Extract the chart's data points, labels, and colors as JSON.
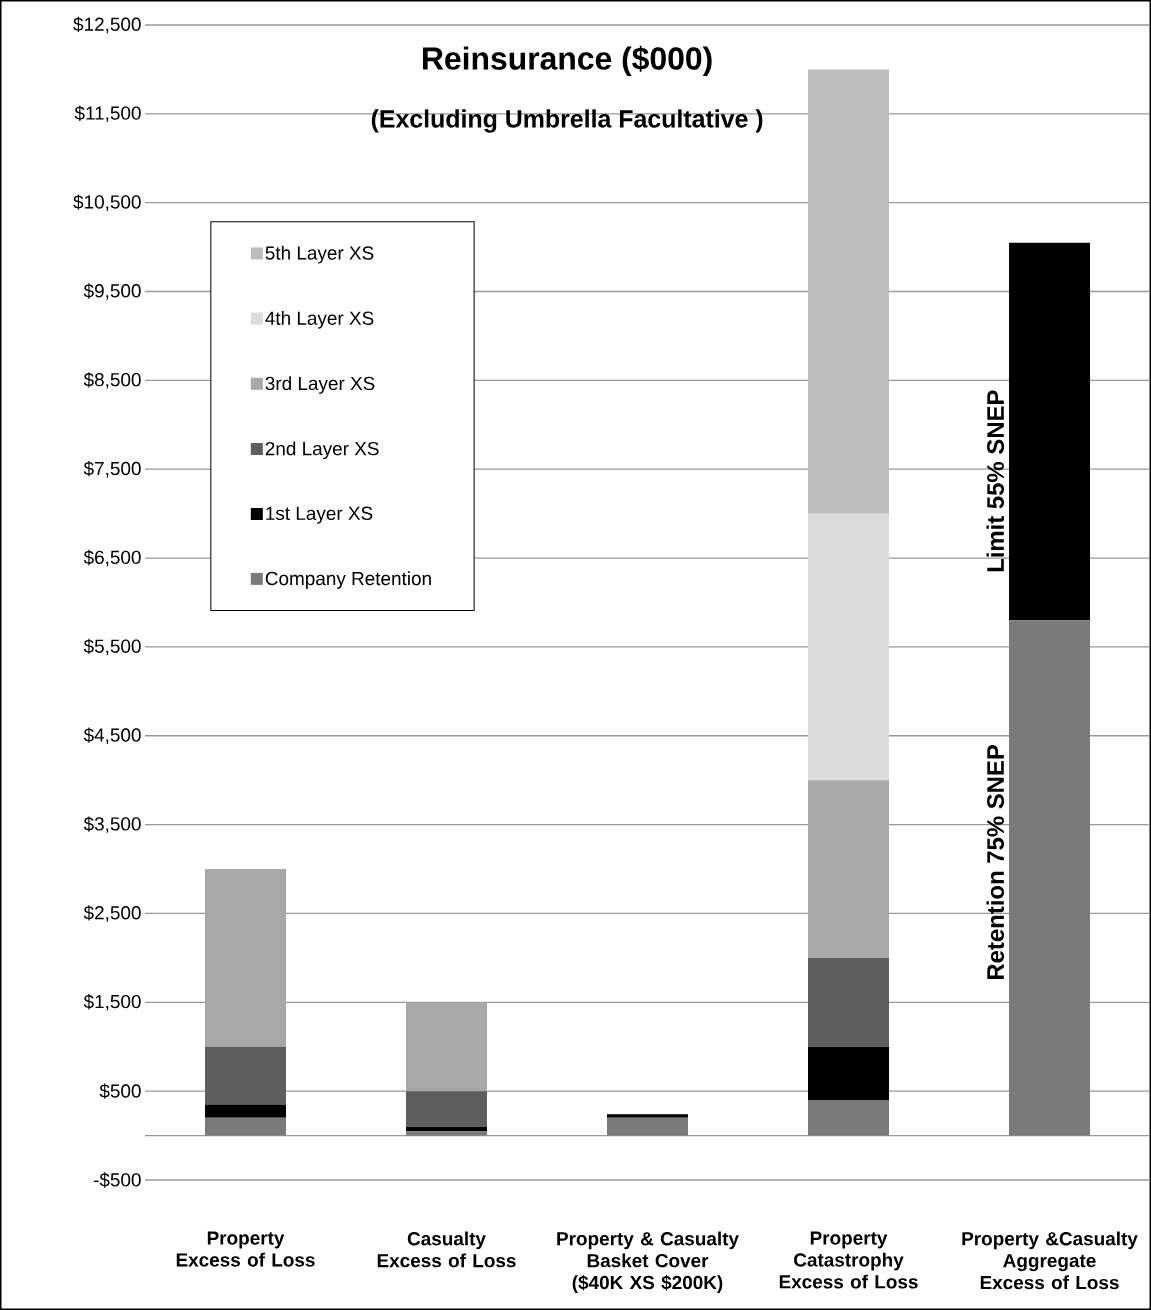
{
  "chart_data": {
    "type": "bar",
    "stacked": true,
    "title": "Reinsurance ($000)",
    "subtitle": "(Excluding Umbrella Facultative )",
    "categories": [
      "Property Excess of Loss",
      "Casualty Excess of Loss",
      "Property & Casualty Basket Cover ($40K XS $200K)",
      "Property Catastrophy Excess of Loss",
      "Property &Casualty Aggregate Excess of Loss"
    ],
    "series": [
      {
        "name": "Company Retention",
        "color": "#7a7a7a",
        "values": [
          200,
          50,
          200,
          400,
          5800
        ]
      },
      {
        "name": "1st Layer XS",
        "color": "#000000",
        "values": [
          150,
          50,
          40,
          600,
          4250
        ]
      },
      {
        "name": "2nd Layer XS",
        "color": "#5e5e5e",
        "values": [
          650,
          400,
          null,
          1000,
          null
        ]
      },
      {
        "name": "3rd Layer XS",
        "color": "#a8a8a8",
        "values": [
          2000,
          1000,
          null,
          2000,
          null
        ]
      },
      {
        "name": "4th Layer XS",
        "color": "#dcdcdc",
        "values": [
          null,
          null,
          null,
          3000,
          null
        ]
      },
      {
        "name": "5th Layer XS",
        "color": "#bdbdbd",
        "values": [
          null,
          null,
          null,
          5000,
          null
        ]
      }
    ],
    "ylim": [
      -500,
      12500
    ],
    "yticks": [
      {
        "value": -500,
        "label": "-$500"
      },
      {
        "value": 500,
        "label": "$500"
      },
      {
        "value": 1500,
        "label": "$1,500"
      },
      {
        "value": 2500,
        "label": "$2,500"
      },
      {
        "value": 3500,
        "label": "$3,500"
      },
      {
        "value": 4500,
        "label": "$4,500"
      },
      {
        "value": 5500,
        "label": "$5,500"
      },
      {
        "value": 6500,
        "label": "$6,500"
      },
      {
        "value": 7500,
        "label": "$7,500"
      },
      {
        "value": 8500,
        "label": "$8,500"
      },
      {
        "value": 9500,
        "label": "$9,500"
      },
      {
        "value": 10500,
        "label": "$10,500"
      },
      {
        "value": 11500,
        "label": "$11,500"
      },
      {
        "value": 12500,
        "label": "$12,500"
      }
    ],
    "grid": "y",
    "legend": "top left",
    "annotations": [
      "Limit 55% SNEP",
      "Retention 75% SNEP"
    ]
  }
}
